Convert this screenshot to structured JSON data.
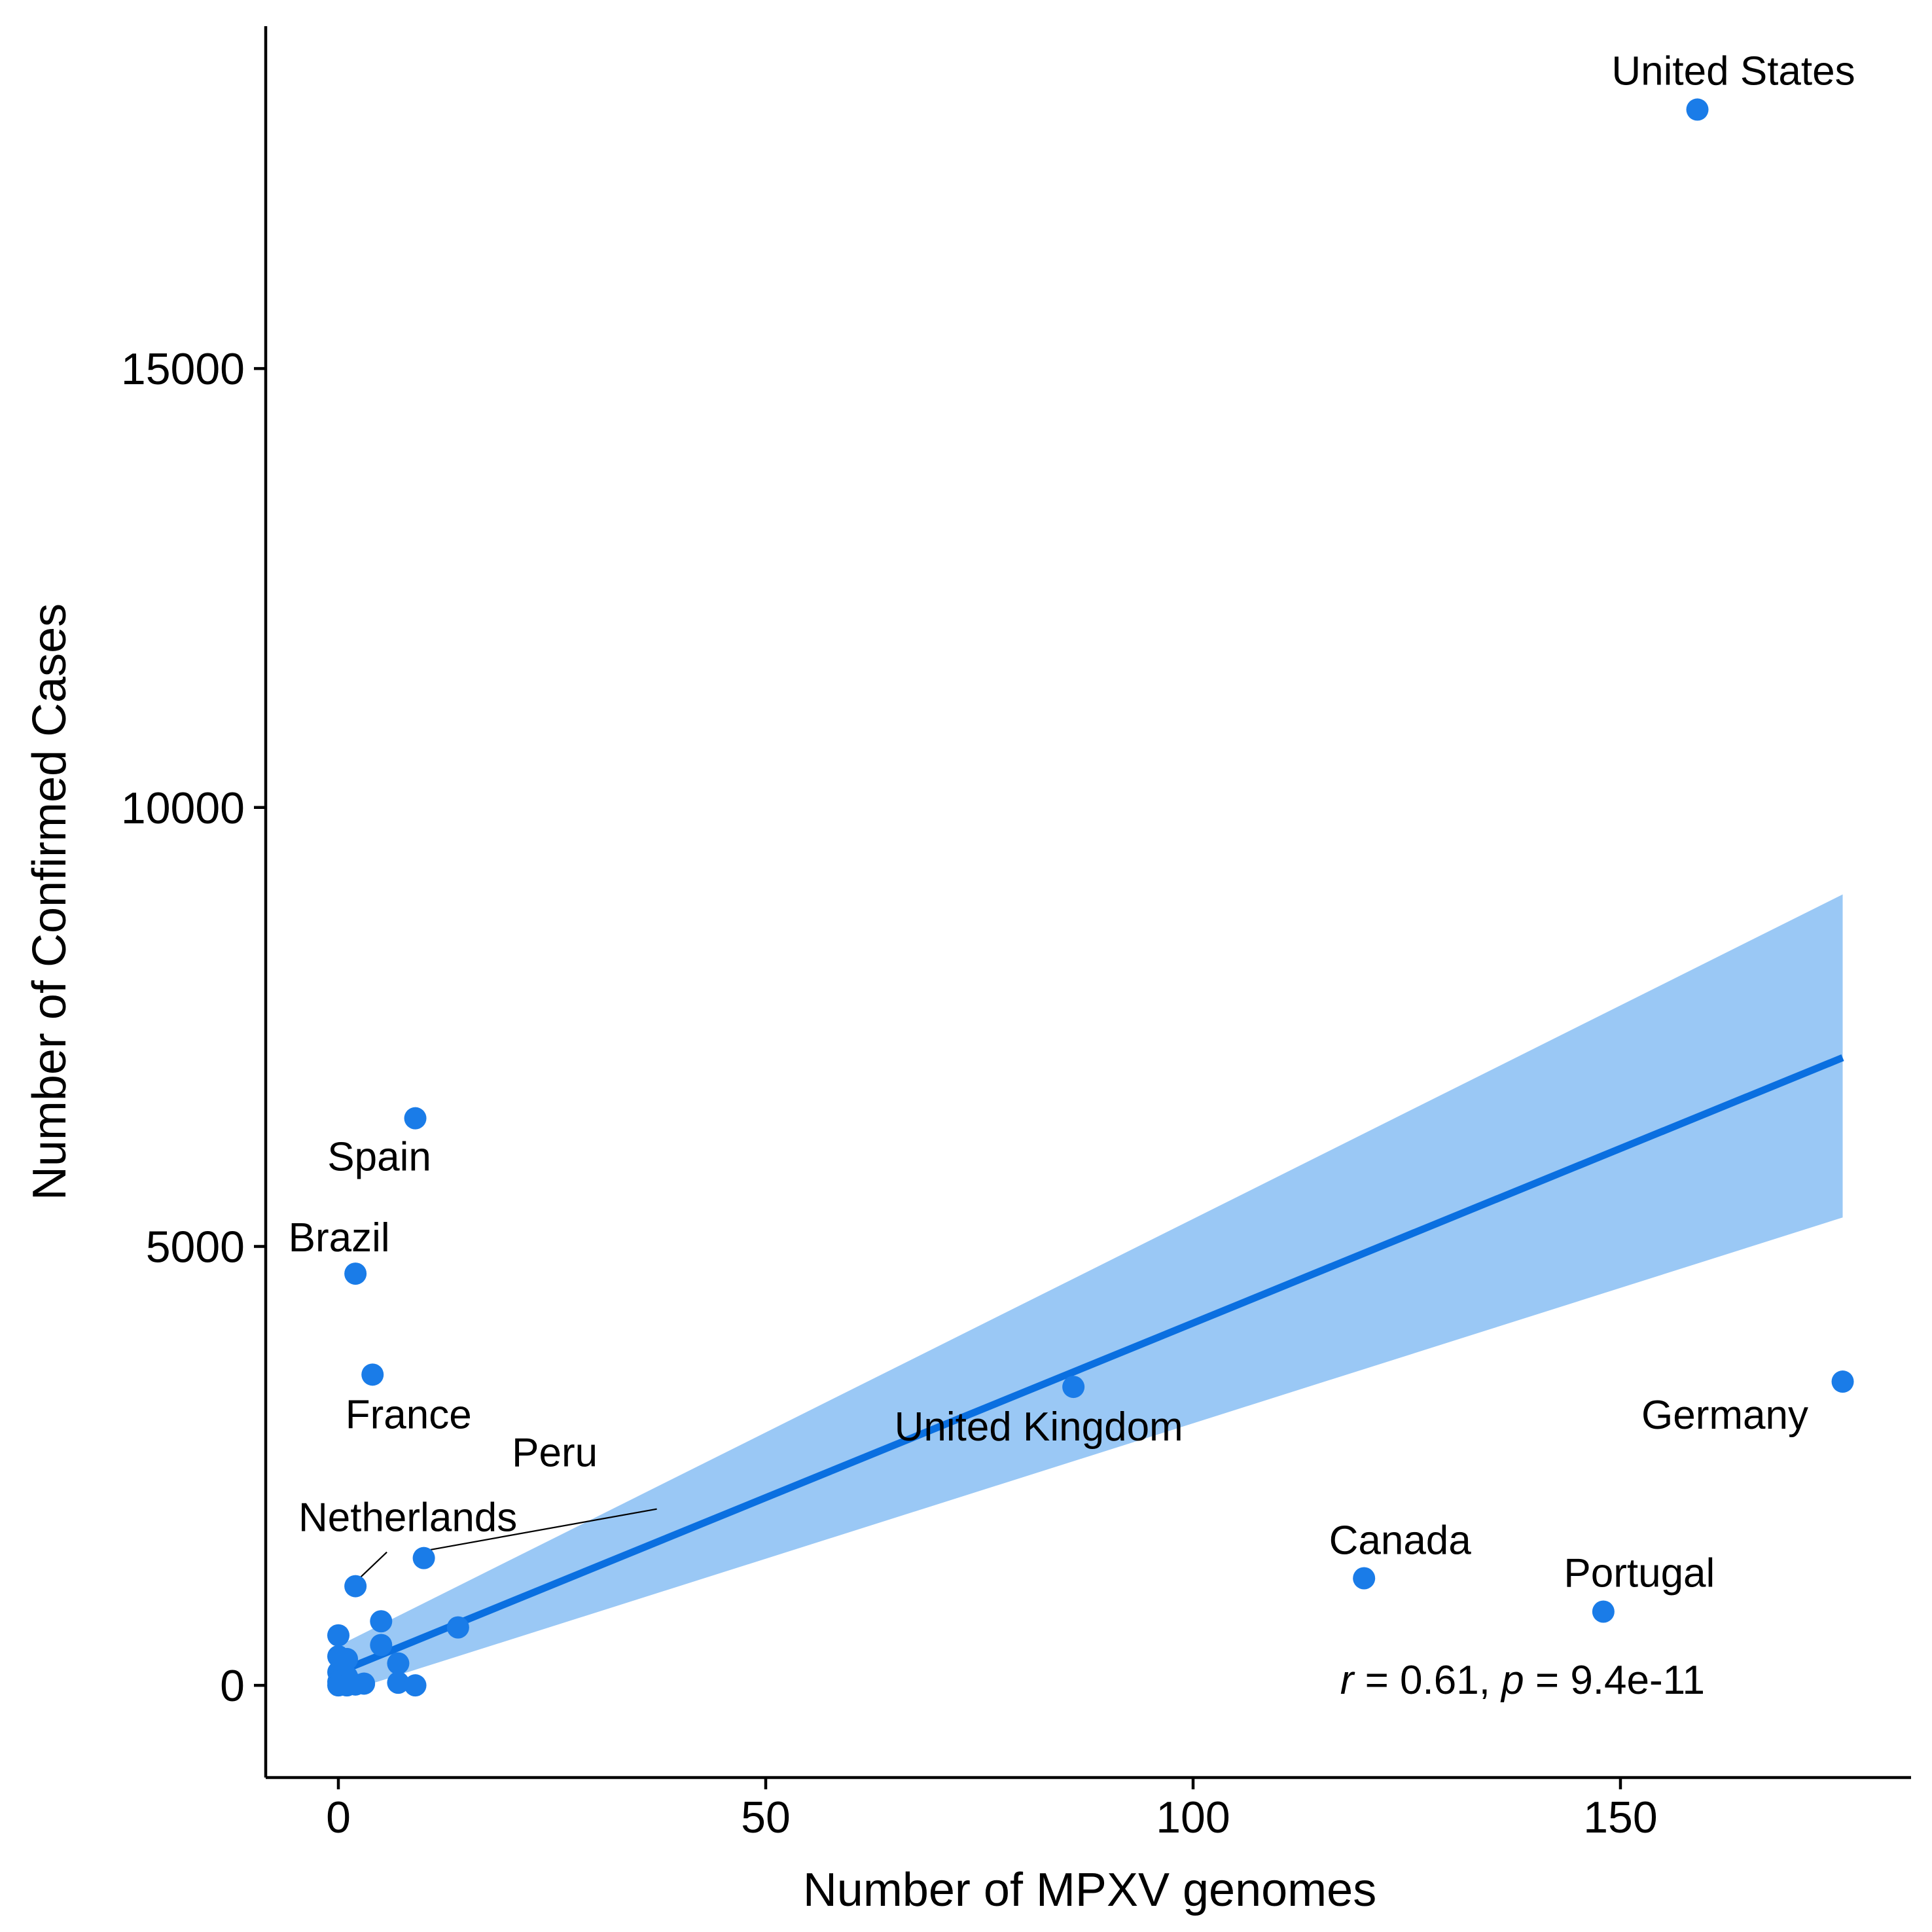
{
  "chart_data": {
    "type": "scatter",
    "xlabel": "Number of MPXV genomes",
    "ylabel": "Number of Confirmed Cases",
    "xlim": [
      -8.5,
      184
    ],
    "ylim": [
      -1050,
      18900
    ],
    "x_ticks": [
      0,
      50,
      100,
      150
    ],
    "y_ticks": [
      0,
      5000,
      10000,
      15000
    ],
    "grid": false,
    "point_color": "#1a7ce8",
    "line_color": "#0a6fe0",
    "band_color": "#9ac8f5",
    "points": [
      {
        "x": 159,
        "y": 17950,
        "label": "United States"
      },
      {
        "x": 9,
        "y": 6460,
        "label": "Spain"
      },
      {
        "x": 2,
        "y": 4690,
        "label": "Brazil"
      },
      {
        "x": 4,
        "y": 3540,
        "label": "France"
      },
      {
        "x": 86,
        "y": 3400,
        "label": "United Kingdom"
      },
      {
        "x": 176,
        "y": 3460,
        "label": "Germany"
      },
      {
        "x": 10,
        "y": 1450,
        "label": "Peru"
      },
      {
        "x": 2,
        "y": 1130,
        "label": "Netherlands"
      },
      {
        "x": 120,
        "y": 1220,
        "label": "Canada"
      },
      {
        "x": 148,
        "y": 840,
        "label": "Portugal"
      },
      {
        "x": 14,
        "y": 660
      },
      {
        "x": 5,
        "y": 730
      },
      {
        "x": 5,
        "y": 460
      },
      {
        "x": 7,
        "y": 250
      },
      {
        "x": 0,
        "y": 570
      },
      {
        "x": 0,
        "y": 330
      },
      {
        "x": 0,
        "y": 150
      },
      {
        "x": 0,
        "y": 40
      },
      {
        "x": 1,
        "y": 300
      },
      {
        "x": 1,
        "y": 100
      },
      {
        "x": 2,
        "y": 10
      },
      {
        "x": 3,
        "y": 20
      },
      {
        "x": 7,
        "y": 30
      },
      {
        "x": 9,
        "y": 0
      },
      {
        "x": 0,
        "y": 0
      },
      {
        "x": 1,
        "y": 0
      }
    ],
    "regression": {
      "x": [
        0,
        176
      ],
      "y": [
        150,
        7150
      ],
      "ci_lower": [
        -100,
        5330
      ],
      "ci_upper": [
        450,
        9010
      ]
    },
    "annotation": {
      "r_symbol": "r",
      "r_text": " = 0.61, ",
      "p_symbol": "p",
      "p_text": " = 9.4e-11"
    }
  }
}
